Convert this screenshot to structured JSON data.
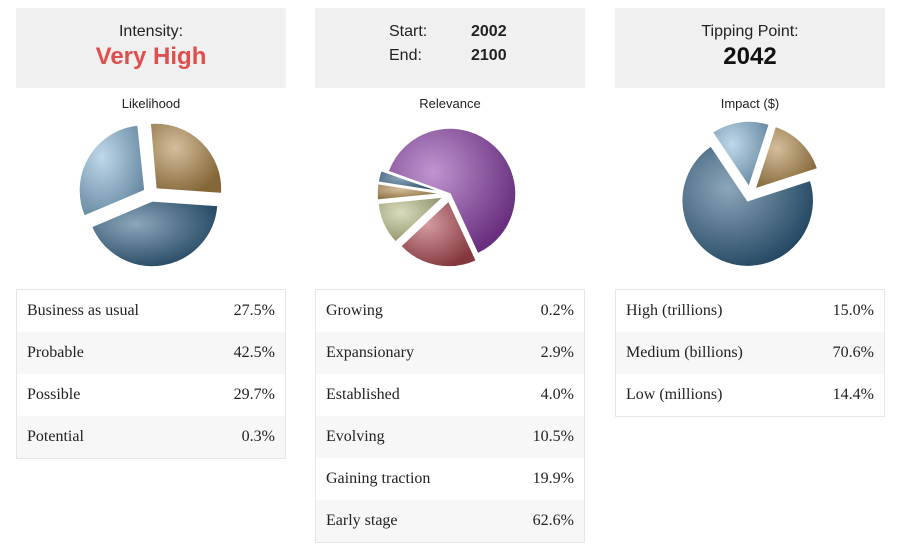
{
  "intensity": {
    "label": "Intensity:",
    "value": "Very High"
  },
  "period": {
    "start_label": "Start:",
    "start_value": "2002",
    "end_label": "End:",
    "end_value": "2100"
  },
  "tipping": {
    "label": "Tipping Point:",
    "value": "2042"
  },
  "colors": {
    "red_text": "#e04e4e"
  },
  "chart_data": [
    {
      "type": "pie",
      "title": "Likelihood",
      "categories": [
        "Business as usual",
        "Probable",
        "Possible",
        "Potential"
      ],
      "values": [
        27.5,
        42.5,
        29.7,
        0.3
      ],
      "value_labels": [
        "27.5%",
        "42.5%",
        "29.7%",
        "0.3%"
      ],
      "colors": [
        "#b0894a",
        "#2e5e82",
        "#8ab8d8",
        "#6a8fb0"
      ]
    },
    {
      "type": "pie",
      "title": "Relevance",
      "categories": [
        "Growing",
        "Expansionary",
        "Established",
        "Evolving",
        "Gaining traction",
        "Early stage"
      ],
      "values": [
        0.2,
        2.9,
        4.0,
        10.5,
        19.9,
        62.6
      ],
      "value_labels": [
        "0.2%",
        "2.9%",
        "4.0%",
        "10.5%",
        "19.9%",
        "62.6%"
      ],
      "colors": [
        "#3a6a8c",
        "#2e5e82",
        "#b0894a",
        "#bcc088",
        "#b04a52",
        "#8a3fa8"
      ]
    },
    {
      "type": "pie",
      "title": "Impact ($)",
      "categories": [
        "High (trillions)",
        "Medium (billions)",
        "Low (millions)"
      ],
      "values": [
        15.0,
        70.6,
        14.4
      ],
      "value_labels": [
        "15.0%",
        "70.6%",
        "14.4%"
      ],
      "colors": [
        "#b0894a",
        "#2e5e82",
        "#8ab8d8"
      ]
    }
  ]
}
